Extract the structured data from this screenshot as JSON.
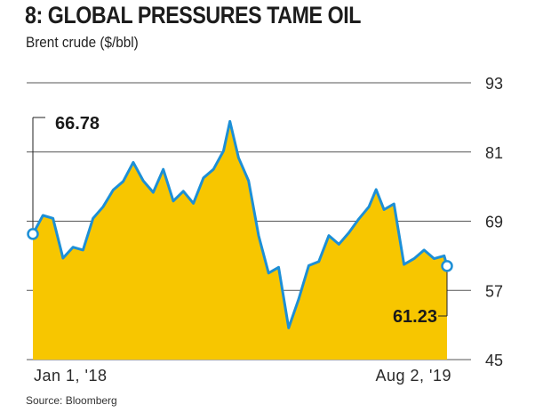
{
  "header": {
    "title": "8: GLOBAL PRESSURES TAME OIL",
    "subtitle": "Brent crude ($/bbl)"
  },
  "footer": {
    "source": "Source: Bloomberg"
  },
  "colors": {
    "area_fill": "#f7c600",
    "line": "#1d8fd6",
    "grid": "#555555",
    "marker_fill": "#ffffff"
  },
  "chart_data": {
    "type": "area",
    "title": "8: GLOBAL PRESSURES TAME OIL",
    "subtitle": "Brent crude ($/bbl)",
    "xlabel": "",
    "ylabel": "",
    "ylim": [
      45,
      93
    ],
    "y_ticks": [
      "93",
      "81",
      "69",
      "57",
      "45"
    ],
    "y_tick_values": [
      93,
      81,
      69,
      57,
      45
    ],
    "x_tick_labels": [
      "Jan 1, '18",
      "Aug 2, '19"
    ],
    "x_range": [
      "2018-01-01",
      "2019-08-02"
    ],
    "grid": true,
    "annotations": [
      {
        "text": "66.78",
        "x": "2018-01-01",
        "y": 66.78
      },
      {
        "text": "61.23",
        "x": "2019-08-02",
        "y": 61.23
      }
    ],
    "series": [
      {
        "x": [
          "2018-01-01",
          "2018-01-15",
          "2018-01-29",
          "2018-02-12",
          "2018-02-26",
          "2018-03-12",
          "2018-03-26",
          "2018-04-09",
          "2018-04-23",
          "2018-05-07",
          "2018-05-21",
          "2018-06-04",
          "2018-06-18",
          "2018-07-02",
          "2018-07-16",
          "2018-07-30",
          "2018-08-13",
          "2018-08-27",
          "2018-09-10",
          "2018-09-24",
          "2018-10-03",
          "2018-10-15",
          "2018-10-29",
          "2018-11-12",
          "2018-11-26",
          "2018-12-10",
          "2018-12-24",
          "2019-01-07",
          "2019-01-21",
          "2019-02-04",
          "2019-02-18",
          "2019-03-04",
          "2019-03-18",
          "2019-04-01",
          "2019-04-15",
          "2019-04-25",
          "2019-05-06",
          "2019-05-20",
          "2019-06-03",
          "2019-06-17",
          "2019-07-01",
          "2019-07-15",
          "2019-07-29",
          "2019-08-02"
        ],
        "values": [
          66.78,
          70.0,
          69.5,
          62.6,
          64.5,
          64.0,
          69.5,
          71.5,
          74.4,
          75.9,
          79.2,
          76.0,
          74.0,
          78.0,
          72.5,
          74.2,
          72.1,
          76.5,
          78.0,
          81.2,
          86.3,
          80.0,
          76.0,
          66.5,
          60.0,
          61.0,
          50.5,
          55.5,
          61.3,
          62.0,
          66.5,
          65.0,
          67.0,
          69.4,
          71.5,
          74.5,
          71.0,
          72.0,
          61.5,
          62.5,
          64.0,
          62.5,
          63.0,
          61.23
        ]
      }
    ]
  }
}
